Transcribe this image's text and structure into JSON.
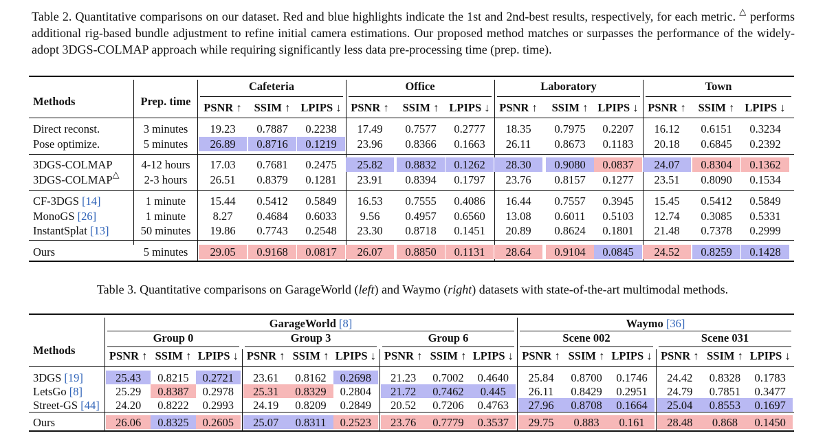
{
  "table2": {
    "caption_title": "Table 2.",
    "caption_part1": "Quantitative comparisons on our dataset. Red and blue highlights indicate the 1st and 2nd-best results, respectively, for each metric.",
    "caption_symbol": "△",
    "caption_part2": "performs additional rig-based bundle adjustment to refine initial camera estimations. Our proposed method matches or surpasses the performance of the widely-adopt 3DGS-COLMAP approach while requiring significantly less data pre-processing time (prep. time).",
    "header_methods": "Methods",
    "header_prep": "Prep. time",
    "groups": [
      "Cafeteria",
      "Office",
      "Laboratory",
      "Town"
    ],
    "metrics": [
      "PSNR ↑",
      "SSIM ↑",
      "LPIPS ↓"
    ],
    "rows": [
      {
        "method": "Direct reconst.",
        "cite": "",
        "sup": "",
        "prep": "3 minutes",
        "values": [
          "19.23",
          "0.7887",
          "0.2238",
          "17.49",
          "0.7577",
          "0.2777",
          "18.35",
          "0.7975",
          "0.2207",
          "16.12",
          "0.6151",
          "0.3234"
        ],
        "hl": [
          "",
          "",
          "",
          "",
          "",
          "",
          "",
          "",
          "",
          "",
          "",
          ""
        ]
      },
      {
        "method": "Pose optimize.",
        "cite": "",
        "sup": "",
        "prep": "5 minutes",
        "values": [
          "26.89",
          "0.8716",
          "0.1219",
          "23.96",
          "0.8366",
          "0.1663",
          "26.11",
          "0.8673",
          "0.1183",
          "20.18",
          "0.6845",
          "0.2392"
        ],
        "hl": [
          "b",
          "b",
          "b",
          "",
          "",
          "",
          "",
          "",
          "",
          "",
          "",
          ""
        ]
      },
      {
        "method": "3DGS-COLMAP",
        "cite": "",
        "sup": "",
        "prep": "4-12 hours",
        "values": [
          "17.03",
          "0.7681",
          "0.2475",
          "25.82",
          "0.8832",
          "0.1262",
          "28.30",
          "0.9080",
          "0.0837",
          "24.07",
          "0.8304",
          "0.1362"
        ],
        "hl": [
          "",
          "",
          "",
          "b",
          "b",
          "b",
          "b",
          "b",
          "r",
          "b",
          "r",
          "r"
        ]
      },
      {
        "method": "3DGS-COLMAP",
        "cite": "",
        "sup": "△",
        "prep": "2-3 hours",
        "values": [
          "26.51",
          "0.8379",
          "0.1281",
          "23.91",
          "0.8394",
          "0.1797",
          "23.76",
          "0.8157",
          "0.1277",
          "23.51",
          "0.8090",
          "0.1534"
        ],
        "hl": [
          "",
          "",
          "",
          "",
          "",
          "",
          "",
          "",
          "",
          "",
          "",
          ""
        ]
      },
      {
        "method": "CF-3DGS ",
        "cite": "[14]",
        "sup": "",
        "prep": "1 minute",
        "values": [
          "15.44",
          "0.5412",
          "0.5849",
          "16.53",
          "0.7555",
          "0.4086",
          "16.44",
          "0.7557",
          "0.3945",
          "15.45",
          "0.5412",
          "0.5849"
        ],
        "hl": [
          "",
          "",
          "",
          "",
          "",
          "",
          "",
          "",
          "",
          "",
          "",
          ""
        ]
      },
      {
        "method": "MonoGS ",
        "cite": "[26]",
        "sup": "",
        "prep": "1 minute",
        "values": [
          "8.27",
          "0.4684",
          "0.6033",
          "9.56",
          "0.4957",
          "0.6560",
          "13.08",
          "0.6011",
          "0.5103",
          "12.74",
          "0.3085",
          "0.5331"
        ],
        "hl": [
          "",
          "",
          "",
          "",
          "",
          "",
          "",
          "",
          "",
          "",
          "",
          ""
        ]
      },
      {
        "method": "InstantSplat ",
        "cite": "[13]",
        "sup": "",
        "prep": "50 minutes",
        "values": [
          "19.86",
          "0.7743",
          "0.2548",
          "23.30",
          "0.8718",
          "0.1451",
          "20.89",
          "0.8624",
          "0.1801",
          "21.48",
          "0.7378",
          "0.2999"
        ],
        "hl": [
          "",
          "",
          "",
          "",
          "",
          "",
          "",
          "",
          "",
          "",
          "",
          ""
        ]
      },
      {
        "method": "Ours",
        "cite": "",
        "sup": "",
        "prep": "5 minutes",
        "values": [
          "29.05",
          "0.9168",
          "0.0817",
          "26.07",
          "0.8850",
          "0.1131",
          "28.64",
          "0.9104",
          "0.0845",
          "24.52",
          "0.8259",
          "0.1428"
        ],
        "hl": [
          "r",
          "r",
          "r",
          "r",
          "r",
          "r",
          "r",
          "r",
          "b",
          "r",
          "b",
          "b"
        ]
      }
    ]
  },
  "table3": {
    "caption_title": "Table 3.",
    "caption_part1": "Quantitative comparisons on GarageWorld (",
    "caption_left": "left",
    "caption_part2": ") and Waymo (",
    "caption_right": "right",
    "caption_part3": ") datasets with state-of-the-art multimodal methods.",
    "header_methods": "Methods",
    "dataset_garage": "GarageWorld ",
    "dataset_garage_cite": "[8]",
    "dataset_waymo": "Waymo ",
    "dataset_waymo_cite": "[36]",
    "groups": [
      "Group 0",
      "Group 3",
      "Group 6",
      "Scene 002",
      "Scene 031"
    ],
    "metrics": [
      "PSNR ↑",
      "SSIM ↑",
      "LPIPS ↓"
    ],
    "rows": [
      {
        "method": "3DGS ",
        "cite": "[19]",
        "values": [
          "25.43",
          "0.8215",
          "0.2721",
          "23.61",
          "0.8162",
          "0.2698",
          "21.23",
          "0.7002",
          "0.4640",
          "25.84",
          "0.8700",
          "0.1746",
          "24.42",
          "0.8328",
          "0.1783"
        ],
        "hl": [
          "b",
          "",
          "b",
          "",
          "",
          "b",
          "",
          "",
          "",
          "",
          "",
          "",
          "",
          "",
          ""
        ]
      },
      {
        "method": "LetsGo ",
        "cite": "[8]",
        "values": [
          "25.29",
          "0.8387",
          "0.2978",
          "25.31",
          "0.8329",
          "0.2804",
          "21.72",
          "0.7462",
          "0.445",
          "26.11",
          "0.8429",
          "0.2951",
          "24.79",
          "0.7851",
          "0.3477"
        ],
        "hl": [
          "",
          "r",
          "",
          "r",
          "r",
          "",
          "b",
          "b",
          "b",
          "",
          "",
          "",
          "",
          "",
          ""
        ]
      },
      {
        "method": "Street-GS ",
        "cite": "[44]",
        "values": [
          "24.20",
          "0.8222",
          "0.2993",
          "24.19",
          "0.8209",
          "0.2849",
          "20.52",
          "0.7206",
          "0.4763",
          "27.96",
          "0.8708",
          "0.1664",
          "25.04",
          "0.8553",
          "0.1697"
        ],
        "hl": [
          "",
          "",
          "",
          "",
          "",
          "",
          "",
          "",
          "",
          "b",
          "b",
          "b",
          "b",
          "b",
          "b"
        ]
      },
      {
        "method": "Ours",
        "cite": "",
        "values": [
          "26.06",
          "0.8325",
          "0.2605",
          "25.07",
          "0.8311",
          "0.2523",
          "23.76",
          "0.7779",
          "0.3537",
          "29.75",
          "0.883",
          "0.161",
          "28.48",
          "0.868",
          "0.1450"
        ],
        "hl": [
          "r",
          "b",
          "r",
          "b",
          "b",
          "r",
          "r",
          "r",
          "r",
          "r",
          "r",
          "r",
          "r",
          "r",
          "r"
        ]
      }
    ]
  }
}
